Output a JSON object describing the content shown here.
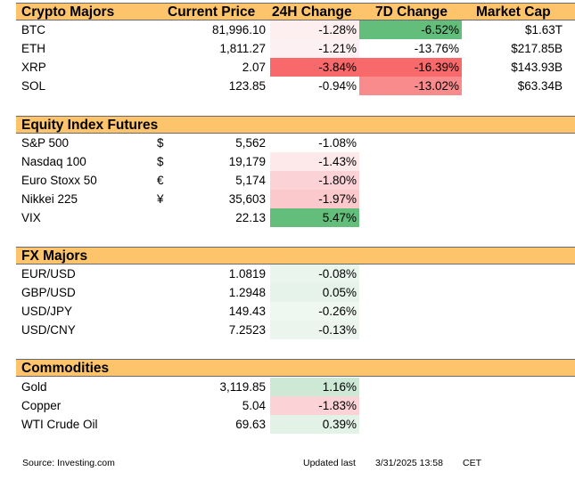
{
  "sections": {
    "crypto": {
      "title": "Crypto Majors",
      "headers": {
        "price": "Current Price",
        "change_24h": "24H Change",
        "change_7d": "7D Change",
        "market_cap": "Market Cap"
      },
      "rows": [
        {
          "name": "BTC",
          "price": "81,996.10",
          "change_24h": "-1.28%",
          "change_7d": "-6.52%",
          "market_cap": "$1.63T",
          "color_24h": "#fdeef0",
          "color_7d": "#63be7b"
        },
        {
          "name": "ETH",
          "price": "1,811.27",
          "change_24h": "-1.21%",
          "change_7d": "-13.76%",
          "market_cap": "$217.85B",
          "color_24h": "#fdf0f2",
          "color_7d": "#ffffff"
        },
        {
          "name": "XRP",
          "price": "2.07",
          "change_24h": "-3.84%",
          "change_7d": "-16.39%",
          "market_cap": "$143.93B",
          "color_24h": "#f8696b",
          "color_7d": "#f8696b"
        },
        {
          "name": "SOL",
          "price": "123.85",
          "change_24h": "-0.94%",
          "change_7d": "-13.02%",
          "market_cap": "$63.34B",
          "color_24h": "#ffffff",
          "color_7d": "#f98b8d"
        }
      ]
    },
    "equity": {
      "title": "Equity Index Futures",
      "rows": [
        {
          "name": "S&P 500",
          "currency": "$",
          "price": "5,562",
          "change_24h": "-1.08%",
          "color_24h": "#ffffff"
        },
        {
          "name": "Nasdaq 100",
          "currency": "$",
          "price": "19,179",
          "change_24h": "-1.43%",
          "color_24h": "#fde8ea"
        },
        {
          "name": "Euro Stoxx 50",
          "currency": "€",
          "price": "5,174",
          "change_24h": "-1.80%",
          "color_24h": "#fbd3d6"
        },
        {
          "name": "Nikkei 225",
          "currency": "¥",
          "price": "35,603",
          "change_24h": "-1.97%",
          "color_24h": "#fbc9cc"
        },
        {
          "name": "VIX",
          "currency": "",
          "price": "22.13",
          "change_24h": "5.47%",
          "color_24h": "#63be7b"
        }
      ]
    },
    "fx": {
      "title": "FX Majors",
      "rows": [
        {
          "name": "EUR/USD",
          "price": "1.0819",
          "change_24h": "-0.08%",
          "color_24h": "#eaf5ee"
        },
        {
          "name": "GBP/USD",
          "price": "1.2948",
          "change_24h": "0.05%",
          "color_24h": "#e6f3ea"
        },
        {
          "name": "USD/JPY",
          "price": "149.43",
          "change_24h": "-0.26%",
          "color_24h": "#eff7f1"
        },
        {
          "name": "USD/CNY",
          "price": "7.2523",
          "change_24h": "-0.13%",
          "color_24h": "#ebf5ee"
        }
      ]
    },
    "commodities": {
      "title": "Commodities",
      "rows": [
        {
          "name": "Gold",
          "price": "3,119.85",
          "change_24h": "1.16%",
          "color_24h": "#cde9d5"
        },
        {
          "name": "Copper",
          "price": "5.04",
          "change_24h": "-1.83%",
          "color_24h": "#fbd3d6"
        },
        {
          "name": "WTI Crude Oil",
          "price": "69.63",
          "change_24h": "0.39%",
          "color_24h": "#e2f2e7"
        }
      ]
    }
  },
  "footer": {
    "source": "Source: Investing.com",
    "updated_label": "Updated last",
    "timestamp": "3/31/2025 13:58",
    "timezone": "CET"
  },
  "colors": {
    "header_band": "#fdc46b",
    "strong_green": "#63be7b",
    "strong_red": "#f8696b"
  }
}
